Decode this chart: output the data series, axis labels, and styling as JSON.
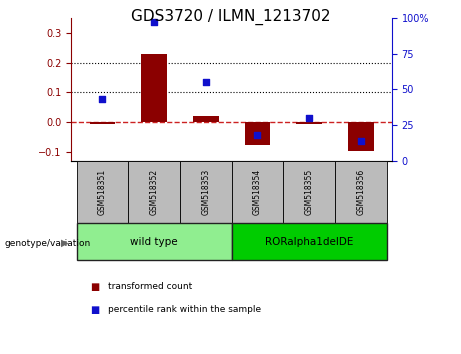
{
  "title": "GDS3720 / ILMN_1213702",
  "samples": [
    "GSM518351",
    "GSM518352",
    "GSM518353",
    "GSM518354",
    "GSM518355",
    "GSM518356"
  ],
  "transformed_count": [
    -0.005,
    0.228,
    0.02,
    -0.075,
    -0.005,
    -0.095
  ],
  "percentile_rank_pct": [
    43,
    97,
    55,
    18,
    30,
    14
  ],
  "groups": [
    {
      "label": "wild type",
      "indices": [
        0,
        1,
        2
      ],
      "color": "#90EE90"
    },
    {
      "label": "RORalpha1delDE",
      "indices": [
        3,
        4,
        5
      ],
      "color": "#00CC00"
    }
  ],
  "ylim_left": [
    -0.13,
    0.35
  ],
  "ylim_right": [
    0,
    100
  ],
  "yticks_left": [
    -0.1,
    0.0,
    0.1,
    0.2,
    0.3
  ],
  "yticks_right": [
    0,
    25,
    50,
    75,
    100
  ],
  "hline_y_left": [
    0.1,
    0.2
  ],
  "bar_color": "#8B0000",
  "dot_color": "#1010CC",
  "bar_width": 0.5,
  "zero_line_color": "#CC2222",
  "title_fontsize": 11,
  "tick_fontsize": 7,
  "legend_label_bar": "transformed count",
  "legend_label_dot": "percentile rank within the sample",
  "genotype_label": "genotype/variation",
  "sample_box_color": "#BBBBBB",
  "group_border_color": "#222222"
}
